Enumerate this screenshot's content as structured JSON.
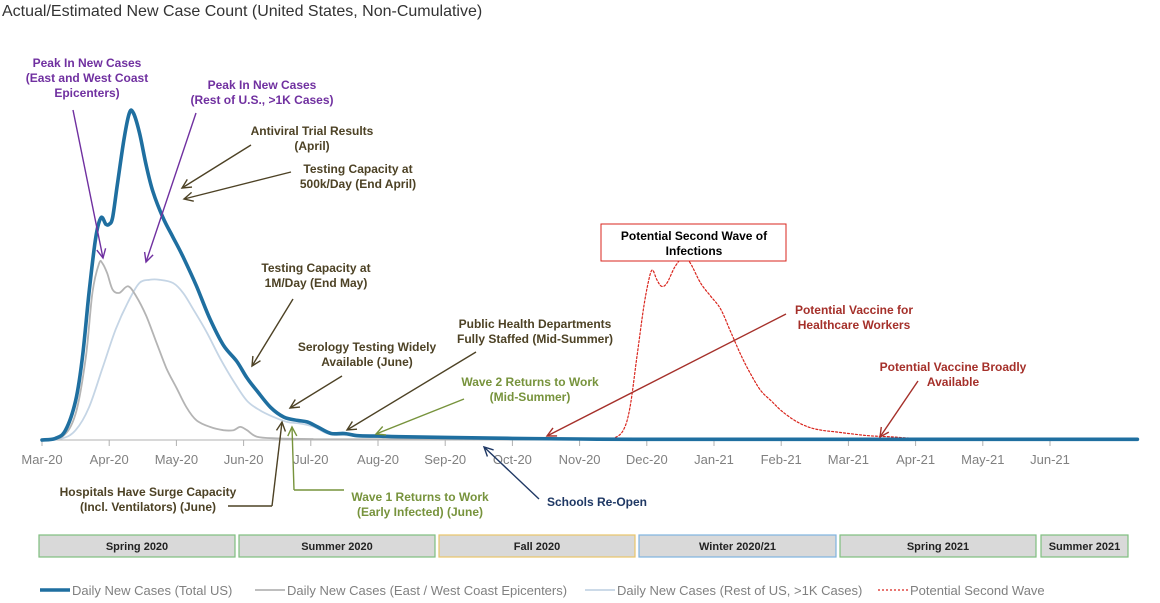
{
  "chart_data": {
    "type": "line",
    "title": "Actual/Estimated New Case Count (United States, Non-Cumulative)",
    "x_ticks": [
      "Mar-20",
      "Apr-20",
      "May-20",
      "Jun-20",
      "Jul-20",
      "Aug-20",
      "Sep-20",
      "Oct-20",
      "Nov-20",
      "Dec-20",
      "Jan-21",
      "Feb-21",
      "Mar-21",
      "Apr-21",
      "May-21",
      "Jun-21"
    ],
    "grid": false,
    "legend_position": "bottom",
    "series": [
      {
        "name": "Daily New Cases (Total US)",
        "color": "#1f6fa0",
        "style": "solid-thick",
        "points": [
          [
            0,
            0
          ],
          [
            0.2,
            0.5
          ],
          [
            0.35,
            3
          ],
          [
            0.5,
            12
          ],
          [
            0.6,
            25
          ],
          [
            0.7,
            45
          ],
          [
            0.8,
            62
          ],
          [
            0.88,
            68
          ],
          [
            0.95,
            66
          ],
          [
            1.0,
            66
          ],
          [
            1.05,
            68
          ],
          [
            1.12,
            78
          ],
          [
            1.22,
            92
          ],
          [
            1.3,
            100
          ],
          [
            1.36,
            100
          ],
          [
            1.45,
            94
          ],
          [
            1.55,
            84
          ],
          [
            1.65,
            76
          ],
          [
            1.8,
            68
          ],
          [
            1.95,
            62
          ],
          [
            2.1,
            56
          ],
          [
            2.3,
            47
          ],
          [
            2.5,
            37
          ],
          [
            2.7,
            29
          ],
          [
            2.9,
            24
          ],
          [
            3.05,
            19
          ],
          [
            3.2,
            15
          ],
          [
            3.4,
            10
          ],
          [
            3.6,
            7
          ],
          [
            3.8,
            6
          ],
          [
            3.95,
            5.5
          ],
          [
            4.1,
            4
          ],
          [
            4.3,
            2
          ],
          [
            4.5,
            2
          ],
          [
            4.7,
            1.3
          ],
          [
            5.0,
            1.2
          ],
          [
            5.3,
            1
          ],
          [
            6.0,
            0.8
          ],
          [
            7.0,
            0.5
          ],
          [
            8.0,
            0.3
          ],
          [
            9.0,
            0.2
          ],
          [
            12.0,
            0.2
          ],
          [
            15.0,
            0.2
          ],
          [
            16.3,
            0.2
          ]
        ]
      },
      {
        "name": "Daily New Cases (East / West Coast Epicenters)",
        "color": "#b4b4b4",
        "style": "solid",
        "points": [
          [
            0,
            0
          ],
          [
            0.3,
            1
          ],
          [
            0.5,
            8
          ],
          [
            0.65,
            25
          ],
          [
            0.75,
            45
          ],
          [
            0.85,
            54
          ],
          [
            0.9,
            54
          ],
          [
            0.97,
            51
          ],
          [
            1.05,
            46
          ],
          [
            1.15,
            45
          ],
          [
            1.28,
            47
          ],
          [
            1.4,
            44
          ],
          [
            1.55,
            38
          ],
          [
            1.7,
            30
          ],
          [
            1.85,
            22
          ],
          [
            2.0,
            16
          ],
          [
            2.15,
            10
          ],
          [
            2.3,
            6
          ],
          [
            2.5,
            4
          ],
          [
            2.7,
            3
          ],
          [
            2.85,
            3
          ],
          [
            2.95,
            4
          ],
          [
            3.05,
            3
          ],
          [
            3.2,
            1
          ],
          [
            3.5,
            0.5
          ],
          [
            4,
            0.3
          ],
          [
            5,
            0.2
          ],
          [
            16.3,
            0
          ]
        ]
      },
      {
        "name": "Daily New Cases (Rest of US, >1K Cases)",
        "color": "#c5d5e5",
        "style": "solid",
        "points": [
          [
            0,
            0
          ],
          [
            0.3,
            0.5
          ],
          [
            0.5,
            3
          ],
          [
            0.7,
            10
          ],
          [
            0.9,
            22
          ],
          [
            1.1,
            34
          ],
          [
            1.3,
            43
          ],
          [
            1.45,
            48
          ],
          [
            1.6,
            49
          ],
          [
            1.75,
            49
          ],
          [
            1.95,
            48
          ],
          [
            2.1,
            45
          ],
          [
            2.25,
            40
          ],
          [
            2.45,
            33
          ],
          [
            2.65,
            25
          ],
          [
            2.85,
            18
          ],
          [
            3.05,
            12
          ],
          [
            3.25,
            9
          ],
          [
            3.45,
            7
          ],
          [
            3.65,
            5.5
          ],
          [
            3.85,
            5
          ],
          [
            4.05,
            4
          ],
          [
            4.25,
            2
          ],
          [
            4.5,
            1.5
          ],
          [
            4.8,
            1.2
          ],
          [
            5.2,
            0.8
          ],
          [
            6,
            0.5
          ],
          [
            7,
            0.4
          ],
          [
            8,
            0.3
          ],
          [
            16.3,
            0.1
          ]
        ]
      },
      {
        "name": "Potential Second Wave",
        "color": "#d9251d",
        "style": "dotted",
        "points": [
          [
            8.3,
            0
          ],
          [
            8.5,
            0.5
          ],
          [
            8.65,
            3
          ],
          [
            8.75,
            10
          ],
          [
            8.85,
            25
          ],
          [
            8.95,
            40
          ],
          [
            9.02,
            48
          ],
          [
            9.08,
            52
          ],
          [
            9.15,
            49
          ],
          [
            9.22,
            47
          ],
          [
            9.3,
            48
          ],
          [
            9.42,
            53
          ],
          [
            9.55,
            56
          ],
          [
            9.65,
            54
          ],
          [
            9.8,
            48
          ],
          [
            9.95,
            44
          ],
          [
            10.1,
            40
          ],
          [
            10.25,
            33
          ],
          [
            10.4,
            26
          ],
          [
            10.55,
            20
          ],
          [
            10.7,
            15
          ],
          [
            10.85,
            12
          ],
          [
            11.0,
            9
          ],
          [
            11.2,
            6
          ],
          [
            11.4,
            4
          ],
          [
            11.6,
            3
          ],
          [
            11.8,
            2.5
          ],
          [
            12.0,
            2
          ],
          [
            12.3,
            1.3
          ],
          [
            12.6,
            1
          ],
          [
            13.0,
            0.5
          ],
          [
            13.5,
            0.2
          ],
          [
            16.3,
            0
          ]
        ]
      }
    ],
    "annotations": [
      {
        "text": [
          "Peak In New Cases",
          "(East and West Coast",
          "Epicenters)"
        ],
        "color": "#7030a0"
      },
      {
        "text": [
          "Peak In New Cases",
          "(Rest of U.S., >1K Cases)"
        ],
        "color": "#7030a0"
      },
      {
        "text": [
          "Antiviral  Trial Results",
          "(April)"
        ],
        "color": "#4d4225"
      },
      {
        "text": [
          "Testing Capacity at",
          "500k/Day  (End April)"
        ],
        "color": "#4d4225"
      },
      {
        "text": [
          "Testing Capacity at",
          "1M/Day (End May)"
        ],
        "color": "#4d4225"
      },
      {
        "text": [
          "Serology Testing Widely",
          "Available (June)"
        ],
        "color": "#4d4225"
      },
      {
        "text": [
          "Public Health Departments",
          "Fully Staffed (Mid-Summer)"
        ],
        "color": "#4d4225"
      },
      {
        "text": [
          "Wave 2 Returns to Work",
          "(Mid-Summer)"
        ],
        "color": "#77933c"
      },
      {
        "text": [
          "Hospitals Have Surge Capacity",
          "(Incl. Ventilators) (June)"
        ],
        "color": "#4d4225"
      },
      {
        "text": [
          "Wave 1 Returns to Work",
          "(Early Infected) (June)"
        ],
        "color": "#77933c"
      },
      {
        "text": [
          "Schools Re-Open"
        ],
        "color": "#1f3864"
      },
      {
        "text": [
          "Potential Second Wave of",
          "Infections"
        ],
        "color": "#000000"
      },
      {
        "text": [
          "Potential Vaccine for",
          "Healthcare Workers"
        ],
        "color": "#a5302a"
      },
      {
        "text": [
          "Potential Vaccine Broadly",
          "Available"
        ],
        "color": "#a5302a"
      }
    ],
    "seasons": [
      {
        "label": "Spring 2020",
        "border": "#7fbf7f"
      },
      {
        "label": "Summer 2020",
        "border": "#7fbf7f"
      },
      {
        "label": "Fall  2020",
        "border": "#e8c56a"
      },
      {
        "label": "Winter 2020/21",
        "border": "#7fb3e0"
      },
      {
        "label": "Spring 2021",
        "border": "#7fbf7f"
      },
      {
        "label": "Summer 2021",
        "border": "#7fbf7f"
      }
    ]
  }
}
